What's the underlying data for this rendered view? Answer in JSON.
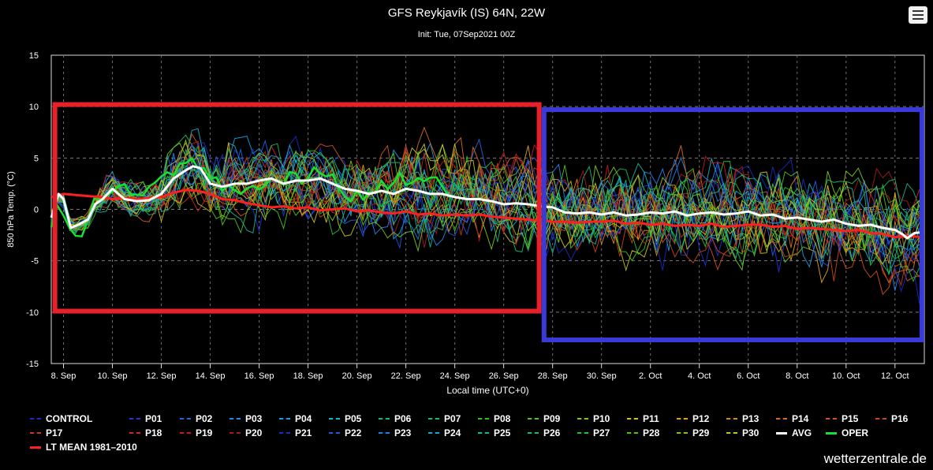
{
  "chart_data": {
    "type": "line",
    "title": "GFS Reykjavík (IS) 64N, 22W",
    "subtitle": "Init: Tue, 07Sep2021 00Z",
    "xlabel": "Local time (UTC+0)",
    "ylabel": "850 hPa Temp. (°C)",
    "ylim": [
      -15,
      15
    ],
    "yticks": [
      15,
      10,
      5,
      0,
      -5,
      -10,
      -15
    ],
    "xlim_days": [
      7.5,
      43.2
    ],
    "xticks": [
      {
        "day": 8,
        "label": "8. Sep"
      },
      {
        "day": 10,
        "label": "10. Sep"
      },
      {
        "day": 12,
        "label": "12. Sep"
      },
      {
        "day": 14,
        "label": "14. Sep"
      },
      {
        "day": 16,
        "label": "16. Sep"
      },
      {
        "day": 18,
        "label": "18. Sep"
      },
      {
        "day": 20,
        "label": "20. Sep"
      },
      {
        "day": 22,
        "label": "22. Sep"
      },
      {
        "day": 24,
        "label": "24. Sep"
      },
      {
        "day": 26,
        "label": "26. Sep"
      },
      {
        "day": 28,
        "label": "28. Sep"
      },
      {
        "day": 30,
        "label": "30. Sep"
      },
      {
        "day": 32,
        "label": "2. Oct"
      },
      {
        "day": 34,
        "label": "4. Oct"
      },
      {
        "day": 36,
        "label": "6. Oct"
      },
      {
        "day": 38,
        "label": "8. Oct"
      },
      {
        "day": 40,
        "label": "10. Oct"
      },
      {
        "day": 42,
        "label": "12. Oct"
      }
    ],
    "grid": true,
    "legend_position": "bottom",
    "series_avg": {
      "name": "AVG",
      "color": "#ffffff",
      "x": [
        7.5,
        7.8,
        8.0,
        8.3,
        8.6,
        9.0,
        9.3,
        9.6,
        10.0,
        10.5,
        11.0,
        11.5,
        12.0,
        12.5,
        13.0,
        13.3,
        13.6,
        14.0,
        14.5,
        15.0,
        15.5,
        16.0,
        16.5,
        17.0,
        17.5,
        18.0,
        18.5,
        19.0,
        19.5,
        20.0,
        20.5,
        21.0,
        21.5,
        22.0,
        22.5,
        23.0,
        23.5,
        24.0,
        24.5,
        25.0,
        25.5,
        26.0,
        26.5,
        27.0,
        27.5,
        28.0,
        28.5,
        29.0,
        29.5,
        30.0,
        30.5,
        31.0,
        31.5,
        32.0,
        32.5,
        33.0,
        33.5,
        34.0,
        34.5,
        35.0,
        35.5,
        36.0,
        36.5,
        37.0,
        37.5,
        38.0,
        38.5,
        39.0,
        39.5,
        40.0,
        40.5,
        41.0,
        41.5,
        42.0,
        42.3,
        42.5,
        42.8,
        43.2
      ],
      "y": [
        -0.8,
        1.5,
        1.0,
        -1.8,
        -1.5,
        -1.0,
        0.5,
        1.0,
        2.0,
        1.0,
        0.8,
        0.9,
        1.5,
        3.0,
        3.8,
        4.2,
        4.0,
        2.5,
        2.2,
        2.5,
        2.5,
        2.8,
        3.0,
        2.5,
        2.8,
        2.8,
        3.0,
        2.5,
        2.0,
        1.8,
        1.5,
        1.8,
        1.5,
        2.0,
        1.8,
        1.5,
        1.5,
        1.2,
        1.0,
        1.0,
        0.8,
        0.5,
        0.6,
        0.5,
        0.3,
        0.2,
        -0.3,
        -0.4,
        -0.3,
        -0.5,
        -0.3,
        -0.6,
        -0.5,
        -0.3,
        -0.4,
        -0.2,
        -0.6,
        -0.4,
        -0.3,
        -0.5,
        -0.4,
        -0.2,
        -0.6,
        -0.5,
        -0.9,
        -0.8,
        -1.0,
        -1.2,
        -1.0,
        -1.4,
        -1.6,
        -1.5,
        -1.8,
        -2.0,
        -2.4,
        -2.8,
        -2.3,
        -2.2
      ]
    },
    "series_lt_mean": {
      "name": "LT MEAN 1981-2010",
      "color": "#ff1f1f",
      "x": [
        7.5,
        8.0,
        8.5,
        9.0,
        9.5,
        10.0,
        10.5,
        11.0,
        11.5,
        12.0,
        12.5,
        13.0,
        13.5,
        14.0,
        14.5,
        15.0,
        15.5,
        16.0,
        16.5,
        17.0,
        17.5,
        18.0,
        18.5,
        19.0,
        19.5,
        20.0,
        20.5,
        21.0,
        21.5,
        22.0,
        22.5,
        23.0,
        23.5,
        24.0,
        24.5,
        25.0,
        25.5,
        26.0,
        26.5,
        27.0,
        27.5,
        28.0,
        28.5,
        29.0,
        29.5,
        30.0,
        30.5,
        31.0,
        31.5,
        32.0,
        32.5,
        33.0,
        33.5,
        34.0,
        34.5,
        35.0,
        35.5,
        36.0,
        36.5,
        37.0,
        37.5,
        38.0,
        38.5,
        39.0,
        39.5,
        40.0,
        40.5,
        41.0,
        41.5,
        42.0,
        42.5,
        43.2
      ],
      "y": [
        1.2,
        1.5,
        1.4,
        1.3,
        1.2,
        1.0,
        1.1,
        1.0,
        1.1,
        1.2,
        1.6,
        1.9,
        1.8,
        1.5,
        1.0,
        0.9,
        0.6,
        0.4,
        0.2,
        0.3,
        0.1,
        0.2,
        -0.1,
        0.0,
        0.1,
        -0.2,
        -0.1,
        -0.3,
        -0.4,
        -0.2,
        -0.5,
        -0.4,
        -0.6,
        -0.5,
        -0.6,
        -0.5,
        -0.7,
        -0.8,
        -0.9,
        -1.0,
        -1.1,
        -1.2,
        -1.2,
        -1.3,
        -1.2,
        -1.2,
        -1.1,
        -1.4,
        -1.3,
        -1.5,
        -1.4,
        -1.6,
        -1.5,
        -1.6,
        -1.4,
        -1.7,
        -1.6,
        -1.5,
        -1.5,
        -1.7,
        -1.6,
        -1.9,
        -1.8,
        -1.9,
        -2.0,
        -2.1,
        -2.0,
        -2.3,
        -2.4,
        -2.7,
        -2.6,
        -2.7
      ]
    },
    "ensemble_members": [
      {
        "name": "CONTROL",
        "color": "#1a2bbf"
      },
      {
        "name": "P01",
        "color": "#1f35d6"
      },
      {
        "name": "P02",
        "color": "#2260e6"
      },
      {
        "name": "P03",
        "color": "#2485ec"
      },
      {
        "name": "P04",
        "color": "#1c9cde"
      },
      {
        "name": "P05",
        "color": "#16b3c6"
      },
      {
        "name": "P06",
        "color": "#16b58a"
      },
      {
        "name": "P07",
        "color": "#1cbf55"
      },
      {
        "name": "P08",
        "color": "#2ec41f"
      },
      {
        "name": "P09",
        "color": "#55c41c"
      },
      {
        "name": "P10",
        "color": "#7fc81e"
      },
      {
        "name": "P11",
        "color": "#c9c820"
      },
      {
        "name": "P12",
        "color": "#e0a41c"
      },
      {
        "name": "P13",
        "color": "#d88820"
      },
      {
        "name": "P14",
        "color": "#d86c1e"
      },
      {
        "name": "P15",
        "color": "#d4521c"
      },
      {
        "name": "P16",
        "color": "#c8461a"
      },
      {
        "name": "P17",
        "color": "#c23a1c"
      },
      {
        "name": "P18",
        "color": "#c82a24"
      },
      {
        "name": "P19",
        "color": "#c41c22"
      },
      {
        "name": "P20",
        "color": "#a8181c"
      },
      {
        "name": "P21",
        "color": "#1a2bbf"
      },
      {
        "name": "P22",
        "color": "#2255dc"
      },
      {
        "name": "P23",
        "color": "#1f80e0"
      },
      {
        "name": "P24",
        "color": "#17a8d2"
      },
      {
        "name": "P25",
        "color": "#15b89a"
      },
      {
        "name": "P26",
        "color": "#18bb6a"
      },
      {
        "name": "P27",
        "color": "#22c236"
      },
      {
        "name": "P28",
        "color": "#4ac41e"
      },
      {
        "name": "P29",
        "color": "#7cc81e"
      },
      {
        "name": "P30",
        "color": "#c8c41f"
      }
    ],
    "oper": {
      "name": "OPER",
      "color": "#18e030"
    },
    "annotations": [
      {
        "shape": "rectangle",
        "color": "#e8202a",
        "x_days": [
          7.65,
          27.45
        ],
        "y": [
          -9.9,
          10.2
        ]
      },
      {
        "shape": "rectangle",
        "color": "#3a3ad8",
        "x_days": [
          27.65,
          43.1
        ],
        "y": [
          -12.7,
          9.7
        ]
      }
    ]
  },
  "legend": {
    "items": [
      "CONTROL",
      "P01",
      "P02",
      "P03",
      "P04",
      "P05",
      "P06",
      "P07",
      "P08",
      "P09",
      "P10",
      "P11",
      "P12",
      "P13",
      "P14",
      "P15",
      "P16",
      "P17",
      "P18",
      "P19",
      "P20",
      "P21",
      "P22",
      "P23",
      "P24",
      "P25",
      "P26",
      "P27",
      "P28",
      "P29",
      "P30",
      "AVG",
      "OPER",
      "LT MEAN 1981–2010"
    ]
  },
  "credit": "wetterzentrale.de",
  "menu_icon": "hamburger-menu-icon"
}
